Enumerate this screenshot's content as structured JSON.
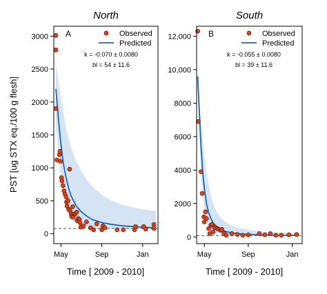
{
  "figure": {
    "ylabel": "PST [ug STX eq./100 g flesh]",
    "xlabel": "Time [ 2009 - 2010]",
    "legend_observed": "Observed",
    "legend_predicted": "Predicted"
  },
  "colors": {
    "observed_fill": "#d9431e",
    "observed_stroke": "#5a1a08",
    "predicted_line": "#2166ac",
    "band_fill": "#c6dbef",
    "reference_line": "#555555"
  },
  "chart_data": [
    {
      "type": "scatter",
      "title": "North",
      "panel_label": "A",
      "x_unit": "months since 2009-04-01",
      "xlim": [
        0.3,
        10.5
      ],
      "ylim": [
        -150,
        3150
      ],
      "x_tick_labels": [
        "May",
        "Sep",
        "Jan"
      ],
      "x_tick_positions": [
        1,
        5,
        9
      ],
      "y_ticks": [
        0,
        500,
        1000,
        1500,
        2000,
        2500,
        3000
      ],
      "y_tick_labels": [
        "0",
        "500",
        "1000",
        "1500",
        "2000",
        "2500",
        "3000"
      ],
      "k_text": "k = -0.070 ± 0.0080",
      "bl_text": "bl = 54 ± 11.6",
      "reference_y": 80,
      "observed": [
        [
          0.5,
          3010
        ],
        [
          0.5,
          2790
        ],
        [
          0.5,
          1900
        ],
        [
          0.6,
          1120
        ],
        [
          0.85,
          1200
        ],
        [
          0.9,
          1250
        ],
        [
          0.95,
          1100
        ],
        [
          1.05,
          850
        ],
        [
          1.1,
          800
        ],
        [
          1.2,
          730
        ],
        [
          1.3,
          650
        ],
        [
          1.4,
          600
        ],
        [
          1.5,
          560
        ],
        [
          1.55,
          480
        ],
        [
          1.6,
          420
        ],
        [
          1.7,
          500
        ],
        [
          1.75,
          370
        ],
        [
          1.85,
          980
        ],
        [
          1.9,
          350
        ],
        [
          2.0,
          300
        ],
        [
          2.05,
          260
        ],
        [
          2.15,
          410
        ],
        [
          2.2,
          250
        ],
        [
          2.3,
          300
        ],
        [
          2.4,
          300
        ],
        [
          2.55,
          330
        ],
        [
          2.6,
          200
        ],
        [
          2.7,
          230
        ],
        [
          2.8,
          220
        ],
        [
          2.85,
          170
        ],
        [
          2.95,
          100
        ],
        [
          3.2,
          120
        ],
        [
          3.5,
          180
        ],
        [
          3.9,
          90
        ],
        [
          4.2,
          60
        ],
        [
          4.5,
          150
        ],
        [
          5.0,
          60
        ],
        [
          5.1,
          120
        ],
        [
          5.3,
          90
        ],
        [
          6.5,
          60
        ],
        [
          7.1,
          60
        ],
        [
          8.2,
          60
        ],
        [
          8.3,
          110
        ],
        [
          9.1,
          110
        ],
        [
          9.3,
          70
        ],
        [
          10.1,
          80
        ],
        [
          10.1,
          140
        ]
      ],
      "predicted": [
        [
          0.5,
          2200
        ],
        [
          0.75,
          1750
        ],
        [
          1.0,
          1350
        ],
        [
          1.25,
          1050
        ],
        [
          1.5,
          850
        ],
        [
          1.75,
          690
        ],
        [
          2.0,
          570
        ],
        [
          2.5,
          420
        ],
        [
          3.0,
          330
        ],
        [
          3.5,
          270
        ],
        [
          4.0,
          220
        ],
        [
          5.0,
          170
        ],
        [
          6.0,
          140
        ],
        [
          7.0,
          120
        ],
        [
          8.0,
          110
        ],
        [
          9.0,
          100
        ],
        [
          10.0,
          92
        ],
        [
          10.3,
          90
        ]
      ],
      "band_upper": [
        [
          0.5,
          2600
        ],
        [
          0.75,
          2320
        ],
        [
          1.0,
          2050
        ],
        [
          1.25,
          1820
        ],
        [
          1.5,
          1620
        ],
        [
          1.75,
          1450
        ],
        [
          2.0,
          1300
        ],
        [
          2.5,
          1100
        ],
        [
          3.0,
          950
        ],
        [
          3.5,
          830
        ],
        [
          4.0,
          730
        ],
        [
          5.0,
          590
        ],
        [
          6.0,
          500
        ],
        [
          7.0,
          440
        ],
        [
          8.0,
          400
        ],
        [
          9.0,
          370
        ],
        [
          10.0,
          350
        ],
        [
          10.3,
          345
        ]
      ],
      "band_lower": [
        [
          0.5,
          1700
        ],
        [
          0.75,
          1180
        ],
        [
          1.0,
          800
        ],
        [
          1.25,
          560
        ],
        [
          1.5,
          400
        ],
        [
          1.75,
          300
        ],
        [
          2.0,
          230
        ],
        [
          2.5,
          160
        ],
        [
          3.0,
          120
        ],
        [
          3.5,
          100
        ],
        [
          4.0,
          90
        ],
        [
          5.0,
          80
        ],
        [
          6.0,
          75
        ],
        [
          7.0,
          72
        ],
        [
          8.0,
          70
        ],
        [
          9.0,
          68
        ],
        [
          10.0,
          66
        ],
        [
          10.3,
          66
        ]
      ]
    },
    {
      "type": "scatter",
      "title": "South",
      "panel_label": "B",
      "x_unit": "months since 2009-04-01",
      "xlim": [
        0.3,
        9.9
      ],
      "ylim": [
        -400,
        12600
      ],
      "x_tick_labels": [
        "May",
        "Sep",
        "Jan"
      ],
      "x_tick_positions": [
        1,
        5,
        9
      ],
      "y_ticks": [
        0,
        2000,
        4000,
        6000,
        8000,
        10000,
        12000
      ],
      "y_tick_labels": [
        "0",
        "2000",
        "4000",
        "6000",
        "8000",
        "10,000",
        "12,000"
      ],
      "k_text": "k = -0.055 ± 0.0080",
      "bl_text": "bl = 39 ± 11.6",
      "reference_y": 80,
      "observed": [
        [
          0.4,
          12300
        ],
        [
          0.45,
          6900
        ],
        [
          0.7,
          3900
        ],
        [
          0.8,
          2600
        ],
        [
          0.95,
          1200
        ],
        [
          1.0,
          900
        ],
        [
          1.1,
          1500
        ],
        [
          1.2,
          1100
        ],
        [
          1.4,
          500
        ],
        [
          1.5,
          200
        ],
        [
          1.6,
          700
        ],
        [
          1.7,
          750
        ],
        [
          1.8,
          300
        ],
        [
          1.9,
          600
        ],
        [
          2.0,
          550
        ],
        [
          2.2,
          500
        ],
        [
          2.3,
          450
        ],
        [
          2.5,
          400
        ],
        [
          2.6,
          450
        ],
        [
          2.8,
          200
        ],
        [
          3.0,
          100
        ],
        [
          3.5,
          200
        ],
        [
          4.0,
          150
        ],
        [
          4.5,
          100
        ],
        [
          5.0,
          120
        ],
        [
          6.0,
          200
        ],
        [
          6.5,
          130
        ],
        [
          7.0,
          200
        ],
        [
          7.5,
          100
        ],
        [
          8.0,
          100
        ],
        [
          8.7,
          130
        ],
        [
          9.4,
          150
        ]
      ],
      "predicted": [
        [
          0.4,
          9600
        ],
        [
          0.55,
          7400
        ],
        [
          0.7,
          5400
        ],
        [
          0.85,
          3900
        ],
        [
          1.0,
          2900
        ],
        [
          1.2,
          2000
        ],
        [
          1.4,
          1450
        ],
        [
          1.6,
          1100
        ],
        [
          1.8,
          850
        ],
        [
          2.0,
          700
        ],
        [
          2.5,
          450
        ],
        [
          3.0,
          320
        ],
        [
          3.5,
          250
        ],
        [
          4.0,
          200
        ],
        [
          5.0,
          150
        ],
        [
          6.0,
          120
        ],
        [
          7.0,
          105
        ],
        [
          8.0,
          95
        ],
        [
          9.0,
          90
        ],
        [
          9.6,
          88
        ]
      ],
      "band_upper": [
        [
          0.4,
          9700
        ],
        [
          0.55,
          8300
        ],
        [
          0.7,
          6900
        ],
        [
          0.85,
          5800
        ],
        [
          1.0,
          4800
        ],
        [
          1.2,
          3850
        ],
        [
          1.4,
          3100
        ],
        [
          1.6,
          2500
        ],
        [
          1.8,
          2000
        ],
        [
          2.0,
          1650
        ],
        [
          2.5,
          1150
        ],
        [
          3.0,
          850
        ],
        [
          3.5,
          680
        ],
        [
          4.0,
          560
        ],
        [
          5.0,
          420
        ],
        [
          6.0,
          340
        ],
        [
          7.0,
          290
        ],
        [
          8.0,
          260
        ],
        [
          9.0,
          240
        ],
        [
          9.6,
          235
        ]
      ],
      "band_lower": [
        [
          0.4,
          9500
        ],
        [
          0.55,
          6200
        ],
        [
          0.7,
          3900
        ],
        [
          0.85,
          2500
        ],
        [
          1.0,
          1600
        ],
        [
          1.2,
          950
        ],
        [
          1.4,
          600
        ],
        [
          1.6,
          400
        ],
        [
          1.8,
          300
        ],
        [
          2.0,
          240
        ],
        [
          2.5,
          160
        ],
        [
          3.0,
          120
        ],
        [
          3.5,
          100
        ],
        [
          4.0,
          90
        ],
        [
          5.0,
          80
        ],
        [
          6.0,
          75
        ],
        [
          7.0,
          72
        ],
        [
          8.0,
          70
        ],
        [
          9.0,
          68
        ],
        [
          9.6,
          68
        ]
      ]
    }
  ]
}
